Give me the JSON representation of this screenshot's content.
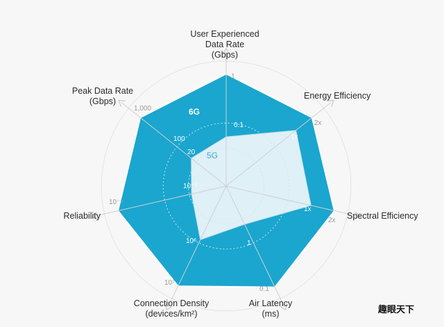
{
  "chart_data": {
    "type": "radar",
    "axes": [
      {
        "label_lines": [
          "User Experienced",
          "Data Rate",
          "(Gbps)"
        ],
        "ticks": [
          "0.1",
          "1"
        ]
      },
      {
        "label_lines": [
          "Energy Efficiency"
        ],
        "ticks": [
          "1x",
          "2x"
        ]
      },
      {
        "label_lines": [
          "Spectral Efficiency"
        ],
        "ticks": [
          "1x",
          "2x"
        ]
      },
      {
        "label_lines": [
          "Air Latency",
          "(ms)"
        ],
        "ticks": [
          "1",
          "0.1"
        ]
      },
      {
        "label_lines": [
          "Connection Density",
          "(devices/km²)"
        ],
        "ticks": [
          "10⁶",
          "10⁷"
        ]
      },
      {
        "label_lines": [
          "Reliability"
        ],
        "ticks": [
          "10⁻⁵",
          "10⁻⁹"
        ]
      },
      {
        "label_lines": [
          "Peak Data Rate",
          "(Gbps)"
        ],
        "ticks": [
          "20",
          "100",
          "1,000"
        ]
      }
    ],
    "series": [
      {
        "name": "6G",
        "values": [
          "1",
          "2x",
          "2x",
          "0.1",
          "10⁷",
          "10⁻⁹",
          "1,000"
        ],
        "fraction": [
          0.98,
          0.96,
          0.97,
          0.98,
          0.97,
          0.97,
          0.96
        ],
        "color": "#1aa6cf"
      },
      {
        "name": "5G",
        "values": [
          "0.1",
          "1x",
          "1x",
          "1",
          "10⁶",
          "10⁻⁵",
          "20"
        ],
        "fraction": [
          0.43,
          0.78,
          0.76,
          0.37,
          0.52,
          0.31,
          0.39
        ],
        "color": "#dff0f7"
      }
    ]
  },
  "watermark": "趣眼天下"
}
